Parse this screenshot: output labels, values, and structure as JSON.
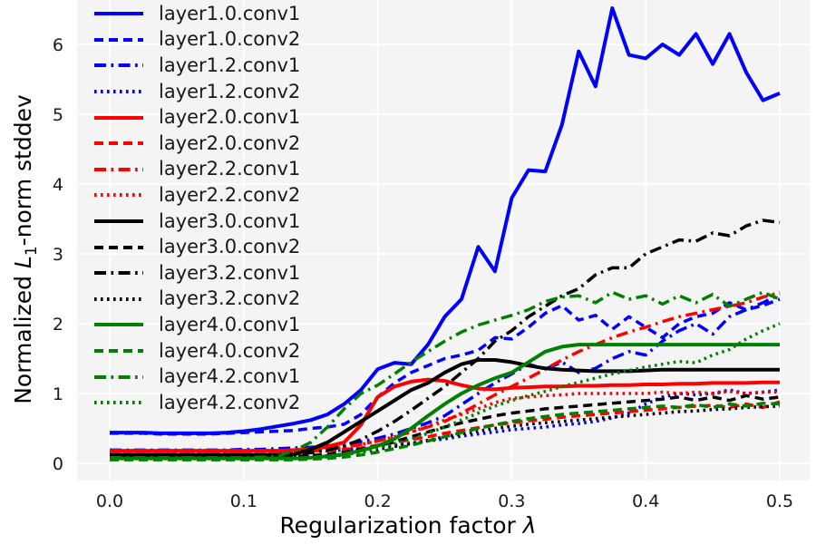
{
  "chart_data": {
    "type": "line",
    "title": "",
    "grid": true,
    "legend_position": "upper-left",
    "background_color": "#f4f4f4",
    "grid_color": "#ffffff",
    "xlabel": {
      "text": "Regularization factor",
      "symbol": "λ"
    },
    "ylabel": {
      "prefix": "Normalized",
      "letter": "L",
      "subscript": "1",
      "suffix": "-norm stddev"
    },
    "xlim": [
      -0.024,
      0.522
    ],
    "ylim": [
      -0.25,
      6.64
    ],
    "xticks": {
      "values": [
        0.0,
        0.1,
        0.2,
        0.3,
        0.4,
        0.5
      ],
      "labels": [
        "0.0",
        "0.1",
        "0.2",
        "0.3",
        "0.4",
        "0.5"
      ]
    },
    "yticks": {
      "values": [
        0,
        1,
        2,
        3,
        4,
        5,
        6
      ],
      "labels": [
        "0",
        "1",
        "2",
        "3",
        "4",
        "5",
        "6"
      ]
    },
    "x": [
      0,
      0.0125,
      0.025,
      0.0375,
      0.05,
      0.0625,
      0.075,
      0.0875,
      0.1,
      0.1125,
      0.125,
      0.1375,
      0.15,
      0.1625,
      0.175,
      0.1875,
      0.2,
      0.2125,
      0.225,
      0.2375,
      0.25,
      0.2625,
      0.275,
      0.2875,
      0.3,
      0.3125,
      0.325,
      0.3375,
      0.35,
      0.3625,
      0.375,
      0.3875,
      0.4,
      0.4125,
      0.425,
      0.4375,
      0.45,
      0.4625,
      0.475,
      0.4875,
      0.5
    ],
    "series": [
      {
        "name": "layer1.0.conv1",
        "color": "#0000ff",
        "style": "solid",
        "values": [
          0.44,
          0.44,
          0.44,
          0.43,
          0.43,
          0.43,
          0.43,
          0.44,
          0.46,
          0.49,
          0.53,
          0.57,
          0.62,
          0.7,
          0.85,
          1.05,
          1.35,
          1.44,
          1.42,
          1.7,
          2.1,
          2.35,
          3.1,
          2.75,
          3.8,
          4.2,
          4.18,
          4.85,
          5.9,
          5.4,
          6.52,
          5.85,
          5.8,
          6.0,
          5.85,
          6.15,
          5.72,
          6.15,
          5.6,
          5.2,
          5.3
        ]
      },
      {
        "name": "layer1.0.conv2",
        "color": "#0000ff",
        "style": "dashed",
        "values": [
          0.43,
          0.43,
          0.43,
          0.42,
          0.42,
          0.42,
          0.42,
          0.43,
          0.44,
          0.45,
          0.46,
          0.47,
          0.5,
          0.52,
          0.56,
          0.7,
          0.95,
          1.15,
          1.3,
          1.4,
          1.5,
          1.55,
          1.62,
          1.8,
          1.78,
          1.95,
          2.15,
          2.26,
          2.05,
          2.12,
          1.92,
          2.1,
          1.95,
          1.8,
          2.0,
          2.1,
          2.15,
          2.3,
          2.2,
          2.26,
          2.35
        ]
      },
      {
        "name": "layer1.2.conv1",
        "color": "#0000ff",
        "style": "dashdot",
        "values": [
          0.19,
          0.19,
          0.19,
          0.19,
          0.19,
          0.19,
          0.19,
          0.19,
          0.2,
          0.2,
          0.21,
          0.22,
          0.23,
          0.25,
          0.27,
          0.31,
          0.36,
          0.42,
          0.5,
          0.58,
          0.68,
          0.84,
          1.0,
          1.15,
          1.28,
          1.42,
          1.35,
          1.45,
          1.3,
          1.36,
          1.5,
          1.6,
          1.55,
          1.75,
          1.9,
          2.0,
          1.85,
          2.1,
          2.2,
          2.3,
          2.42
        ]
      },
      {
        "name": "layer1.2.conv2",
        "color": "#0000ff",
        "style": "dotted",
        "values": [
          0.17,
          0.17,
          0.17,
          0.17,
          0.17,
          0.17,
          0.17,
          0.17,
          0.17,
          0.17,
          0.17,
          0.17,
          0.18,
          0.18,
          0.19,
          0.21,
          0.24,
          0.26,
          0.29,
          0.32,
          0.35,
          0.39,
          0.42,
          0.45,
          0.48,
          0.5,
          0.52,
          0.55,
          0.57,
          0.6,
          0.65,
          0.72,
          0.85,
          0.95,
          1.0,
          0.98,
          1.0,
          1.05,
          1.0,
          1.02,
          1.05
        ]
      },
      {
        "name": "layer2.0.conv1",
        "color": "#ff0000",
        "style": "solid",
        "values": [
          0.18,
          0.18,
          0.18,
          0.18,
          0.18,
          0.18,
          0.18,
          0.18,
          0.18,
          0.18,
          0.18,
          0.19,
          0.2,
          0.24,
          0.3,
          0.55,
          0.95,
          1.1,
          1.17,
          1.2,
          1.18,
          1.12,
          1.07,
          1.06,
          1.08,
          1.09,
          1.1,
          1.1,
          1.11,
          1.11,
          1.12,
          1.12,
          1.13,
          1.13,
          1.14,
          1.14,
          1.15,
          1.15,
          1.15,
          1.16,
          1.16
        ]
      },
      {
        "name": "layer2.0.conv2",
        "color": "#ff0000",
        "style": "dashed",
        "values": [
          0.17,
          0.17,
          0.17,
          0.17,
          0.17,
          0.17,
          0.17,
          0.17,
          0.17,
          0.17,
          0.17,
          0.17,
          0.18,
          0.18,
          0.2,
          0.22,
          0.26,
          0.3,
          0.34,
          0.38,
          0.43,
          0.47,
          0.51,
          0.55,
          0.58,
          0.61,
          0.63,
          0.66,
          0.68,
          0.7,
          0.72,
          0.74,
          0.76,
          0.78,
          0.8,
          0.82,
          0.83,
          0.8,
          0.85,
          0.8,
          0.88
        ]
      },
      {
        "name": "layer2.2.conv1",
        "color": "#ff0000",
        "style": "dashdot",
        "values": [
          0.17,
          0.17,
          0.17,
          0.17,
          0.17,
          0.17,
          0.17,
          0.17,
          0.17,
          0.17,
          0.17,
          0.17,
          0.18,
          0.2,
          0.23,
          0.27,
          0.32,
          0.38,
          0.45,
          0.52,
          0.6,
          0.72,
          0.85,
          0.98,
          1.1,
          1.22,
          1.35,
          1.48,
          1.6,
          1.7,
          1.8,
          1.88,
          1.95,
          2.03,
          2.1,
          2.15,
          2.2,
          2.25,
          2.3,
          2.38,
          2.45
        ]
      },
      {
        "name": "layer2.2.conv2",
        "color": "#ff0000",
        "style": "dotted",
        "values": [
          0.17,
          0.17,
          0.17,
          0.17,
          0.17,
          0.17,
          0.17,
          0.17,
          0.17,
          0.17,
          0.17,
          0.17,
          0.18,
          0.2,
          0.23,
          0.27,
          0.32,
          0.38,
          0.45,
          0.53,
          0.62,
          0.7,
          0.78,
          0.87,
          0.93,
          0.95,
          0.97,
          0.98,
          1.0,
          1.0,
          1.0,
          1.0,
          1.0,
          1.02,
          1.0,
          1.02,
          1.0,
          1.03,
          1.0,
          1.02,
          1.02
        ]
      },
      {
        "name": "layer3.0.conv1",
        "color": "#000000",
        "style": "solid",
        "values": [
          0.12,
          0.12,
          0.12,
          0.12,
          0.12,
          0.12,
          0.12,
          0.12,
          0.12,
          0.12,
          0.12,
          0.13,
          0.2,
          0.3,
          0.45,
          0.6,
          0.75,
          0.9,
          1.05,
          1.15,
          1.3,
          1.42,
          1.48,
          1.48,
          1.45,
          1.4,
          1.36,
          1.34,
          1.33,
          1.32,
          1.32,
          1.32,
          1.33,
          1.34,
          1.34,
          1.34,
          1.34,
          1.34,
          1.34,
          1.34,
          1.34
        ]
      },
      {
        "name": "layer3.0.conv2",
        "color": "#000000",
        "style": "dashed",
        "values": [
          0.1,
          0.1,
          0.1,
          0.1,
          0.1,
          0.1,
          0.1,
          0.1,
          0.1,
          0.1,
          0.1,
          0.1,
          0.11,
          0.13,
          0.16,
          0.2,
          0.25,
          0.31,
          0.38,
          0.45,
          0.52,
          0.58,
          0.63,
          0.68,
          0.72,
          0.75,
          0.78,
          0.8,
          0.82,
          0.84,
          0.86,
          0.88,
          0.9,
          0.92,
          0.95,
          0.9,
          0.95,
          0.9,
          0.97,
          0.92,
          0.95
        ]
      },
      {
        "name": "layer3.2.conv1",
        "color": "#000000",
        "style": "dashdot",
        "values": [
          0.12,
          0.12,
          0.12,
          0.12,
          0.12,
          0.12,
          0.12,
          0.12,
          0.12,
          0.12,
          0.12,
          0.13,
          0.15,
          0.19,
          0.25,
          0.34,
          0.46,
          0.6,
          0.76,
          0.93,
          1.1,
          1.3,
          1.5,
          1.75,
          1.9,
          2.1,
          2.25,
          2.4,
          2.5,
          2.7,
          2.8,
          2.8,
          3.0,
          3.1,
          3.2,
          3.18,
          3.3,
          3.26,
          3.4,
          3.48,
          3.45
        ]
      },
      {
        "name": "layer3.2.conv2",
        "color": "#000000",
        "style": "dotted",
        "values": [
          0.1,
          0.1,
          0.1,
          0.1,
          0.1,
          0.1,
          0.1,
          0.1,
          0.1,
          0.1,
          0.1,
          0.1,
          0.1,
          0.11,
          0.13,
          0.16,
          0.2,
          0.24,
          0.28,
          0.33,
          0.38,
          0.42,
          0.46,
          0.5,
          0.53,
          0.56,
          0.58,
          0.6,
          0.62,
          0.64,
          0.66,
          0.68,
          0.7,
          0.72,
          0.74,
          0.75,
          0.77,
          0.78,
          0.8,
          0.81,
          0.82
        ]
      },
      {
        "name": "layer4.0.conv1",
        "color": "#008000",
        "style": "solid",
        "values": [
          0.07,
          0.07,
          0.07,
          0.07,
          0.07,
          0.07,
          0.07,
          0.07,
          0.07,
          0.07,
          0.07,
          0.07,
          0.08,
          0.1,
          0.13,
          0.18,
          0.25,
          0.35,
          0.5,
          0.68,
          0.85,
          1.0,
          1.12,
          1.22,
          1.3,
          1.45,
          1.6,
          1.67,
          1.7,
          1.7,
          1.7,
          1.7,
          1.7,
          1.7,
          1.7,
          1.7,
          1.7,
          1.7,
          1.7,
          1.7,
          1.7
        ]
      },
      {
        "name": "layer4.0.conv2",
        "color": "#008000",
        "style": "dashed",
        "values": [
          0.05,
          0.05,
          0.05,
          0.05,
          0.05,
          0.05,
          0.05,
          0.05,
          0.05,
          0.05,
          0.05,
          0.05,
          0.06,
          0.07,
          0.09,
          0.12,
          0.16,
          0.21,
          0.26,
          0.32,
          0.38,
          0.44,
          0.5,
          0.55,
          0.6,
          0.64,
          0.67,
          0.7,
          0.72,
          0.74,
          0.76,
          0.78,
          0.8,
          0.82,
          0.8,
          0.84,
          0.8,
          0.85,
          0.82,
          0.86,
          0.85
        ]
      },
      {
        "name": "layer4.2.conv1",
        "color": "#008000",
        "style": "dashdot",
        "values": [
          0.08,
          0.08,
          0.08,
          0.08,
          0.08,
          0.08,
          0.08,
          0.08,
          0.08,
          0.09,
          0.1,
          0.18,
          0.3,
          0.52,
          0.78,
          1.0,
          1.12,
          1.28,
          1.45,
          1.6,
          1.75,
          1.88,
          1.98,
          2.05,
          2.12,
          2.2,
          2.32,
          2.38,
          2.4,
          2.3,
          2.45,
          2.35,
          2.4,
          2.28,
          2.4,
          2.3,
          2.42,
          2.25,
          2.35,
          2.45,
          2.35
        ]
      },
      {
        "name": "layer4.2.conv2",
        "color": "#008000",
        "style": "dotted",
        "values": [
          0.07,
          0.07,
          0.07,
          0.07,
          0.07,
          0.07,
          0.07,
          0.07,
          0.07,
          0.07,
          0.07,
          0.07,
          0.08,
          0.09,
          0.12,
          0.16,
          0.22,
          0.28,
          0.35,
          0.43,
          0.52,
          0.62,
          0.72,
          0.82,
          0.9,
          0.97,
          1.03,
          1.1,
          1.16,
          1.22,
          1.28,
          1.33,
          1.38,
          1.42,
          1.46,
          1.44,
          1.55,
          1.63,
          1.78,
          1.9,
          2.0
        ]
      }
    ]
  }
}
